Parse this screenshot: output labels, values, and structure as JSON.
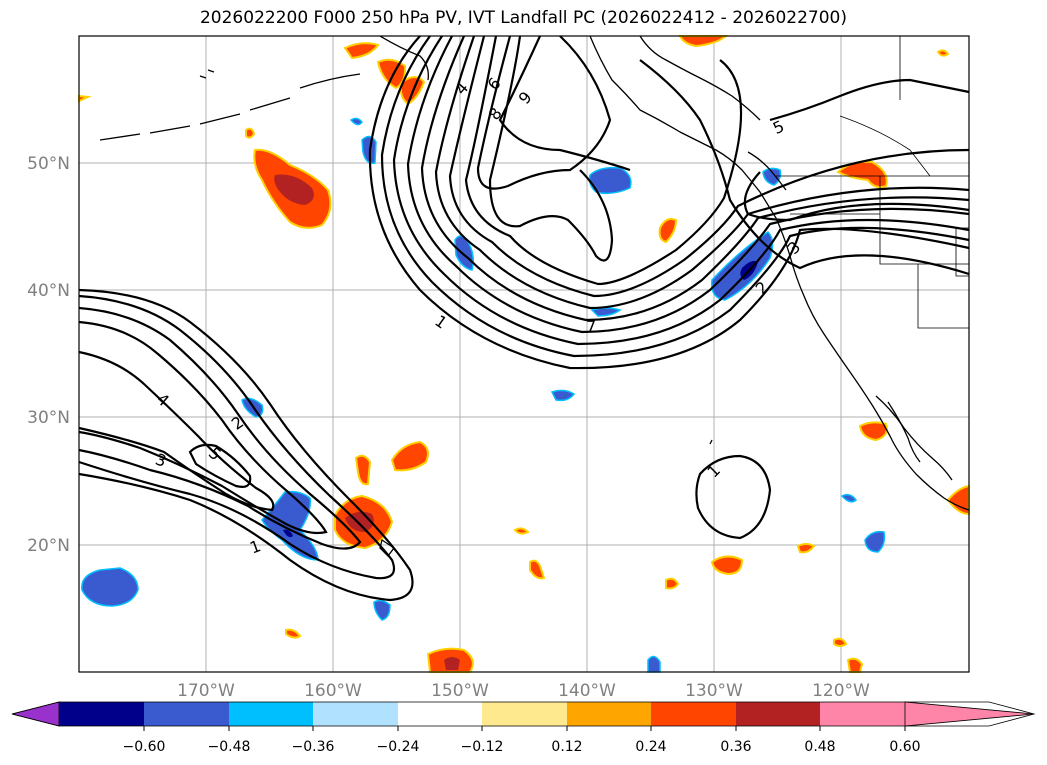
{
  "title": "2026022200 F000 250 hPa PV, IVT Landfall PC (2026022412 - 2026022700)",
  "axes": {
    "lon_labels": [
      "170°W",
      "160°W",
      "150°W",
      "140°W",
      "130°W",
      "120°W"
    ],
    "lat_labels": [
      "50°N",
      "40°N",
      "30°N",
      "20°N"
    ],
    "lon_values": [
      -170,
      -160,
      -150,
      -140,
      -130,
      -120
    ],
    "lat_values": [
      50,
      40,
      30,
      20
    ],
    "extent": {
      "lon_min": -180,
      "lon_max": -110,
      "lat_min": 10,
      "lat_max": 60
    }
  },
  "colorbar": {
    "tick_labels": [
      "−0.60",
      "−0.48",
      "−0.36",
      "−0.24",
      "−0.12",
      "0.12",
      "0.24",
      "0.36",
      "0.48",
      "0.60"
    ],
    "bin_colors": [
      "#9932cc",
      "#00008b",
      "#3a5bd0",
      "#00bfff",
      "#b0e2ff",
      "#ffffff",
      "#ffe98e",
      "#ffa500",
      "#ff4500",
      "#b22222",
      "#ff85a8"
    ],
    "extend": "both"
  },
  "contour_labels": {
    "pacific_high": [
      "4",
      "6",
      "8",
      "9",
      "1",
      "7",
      "5",
      "2",
      "3"
    ],
    "subtropical": [
      "4",
      "2",
      "3",
      "5",
      "1"
    ],
    "small_low": [
      "1"
    ]
  },
  "colors": {
    "neg_fill": "#3a5bd0",
    "neg_core": "#00008b",
    "pos_fill": "#ff4500",
    "pos_core": "#b22222",
    "pos_edge": "#ffd000",
    "neg_edge": "#00bfff"
  }
}
